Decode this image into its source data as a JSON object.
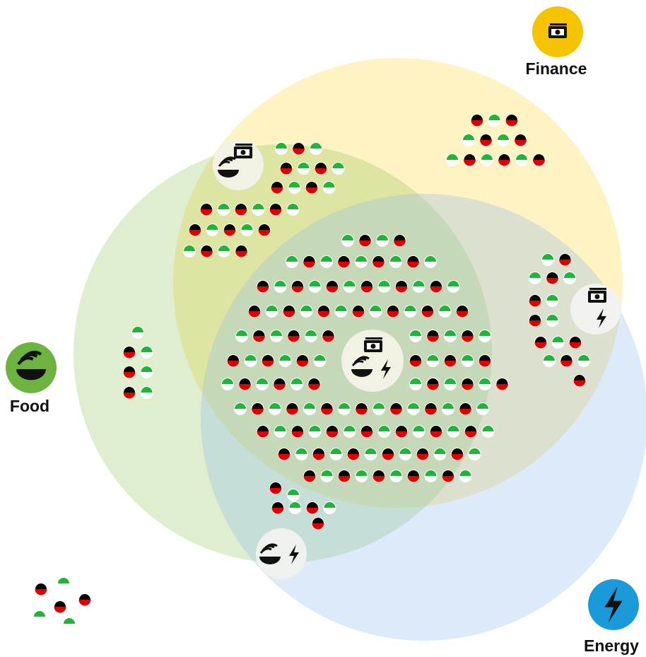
{
  "labels": {
    "finance": "Finance",
    "food": "Food",
    "energy": "Energy"
  }
}
